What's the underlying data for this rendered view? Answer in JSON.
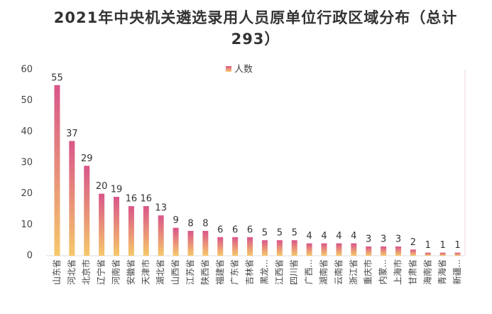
{
  "chart_data": {
    "type": "bar",
    "title": "2021年中央机关遴选录用人员原单位行政区域分布（总计293）",
    "categories": [
      "山东省",
      "河北省",
      "北京市",
      "辽宁省",
      "河南省",
      "安徽省",
      "天津市",
      "湖北省",
      "山西省",
      "江苏省",
      "陕西省",
      "福建省",
      "广东省",
      "吉林省",
      "黑龙...",
      "江西省",
      "四川省",
      "广西...",
      "湖南省",
      "云南省",
      "浙江省",
      "重庆市",
      "内蒙...",
      "上海市",
      "甘肃省",
      "海南省",
      "青海省",
      "新疆..."
    ],
    "series": [
      {
        "name": "人数",
        "color": "#d9558a",
        "gradient_end": "#f6c86a",
        "values": [
          55,
          37,
          29,
          20,
          19,
          16,
          16,
          13,
          9,
          8,
          8,
          6,
          6,
          6,
          5,
          5,
          5,
          4,
          4,
          4,
          4,
          3,
          3,
          3,
          2,
          1,
          1,
          1
        ]
      }
    ],
    "ylim": [
      0,
      60
    ],
    "yticks": [
      0,
      10,
      20,
      30,
      40,
      50,
      60
    ],
    "grid": false,
    "legend": "top"
  }
}
